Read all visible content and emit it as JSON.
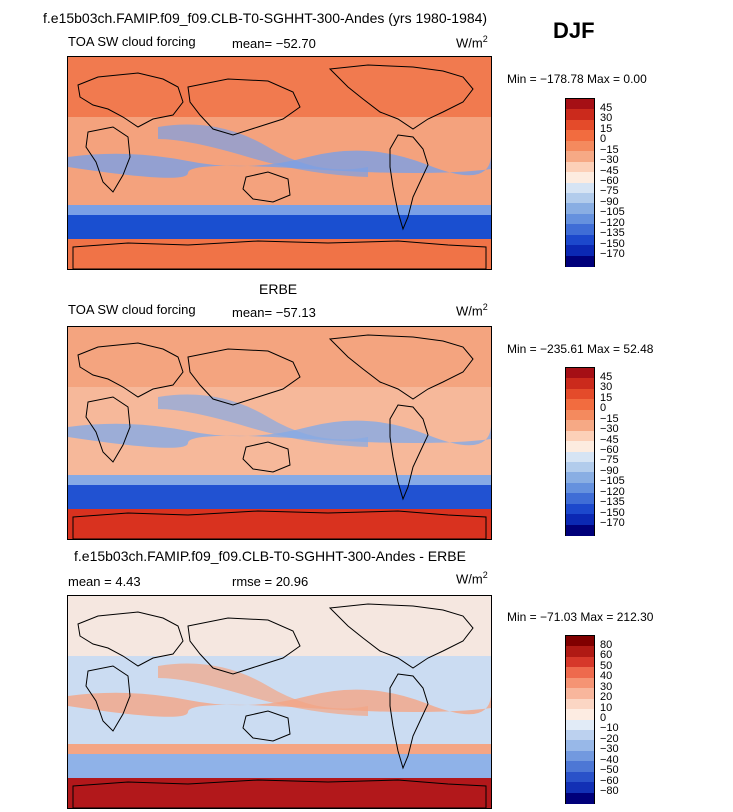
{
  "case_title": "f.e15b03ch.FAMIP.f09_f09.CLB-T0-SGHHT-300-Andes (yrs 1980-1984)",
  "season": "DJF",
  "panels": [
    {
      "title": "",
      "field": "TOA SW cloud forcing",
      "mean_text": "mean= −52.70",
      "units": "W/m",
      "units_exp": "2",
      "minmax": "Min = −178.78 Max =    0.00",
      "colorbar_labels": [
        "45",
        "30",
        "15",
        "0",
        "−15",
        "−30",
        "−45",
        "−60",
        "−75",
        "−90",
        "−105",
        "−120",
        "−135",
        "−150",
        "−170"
      ],
      "colorbar_colors": [
        "#a50f15",
        "#cb2a1c",
        "#e44b2a",
        "#f26c3f",
        "#f48a5e",
        "#f6a985",
        "#fcd0b8",
        "#fdece0",
        "#d6e4f4",
        "#b2ccec",
        "#89aee3",
        "#6591de",
        "#3f6dd6",
        "#1c48cc",
        "#0b28b3",
        "#00007a"
      ],
      "field_colors": {
        "land": "#f07347",
        "ocean": "#f4a27d",
        "band": "#1a4fd0",
        "band_edge": "#7aa0e6",
        "antarctica": "#f07347"
      }
    },
    {
      "title": "ERBE",
      "field": "TOA SW cloud forcing",
      "mean_text": "mean= −57.13",
      "units": "W/m",
      "units_exp": "2",
      "minmax": "Min = −235.61 Max =  52.48",
      "colorbar_labels": [
        "45",
        "30",
        "15",
        "0",
        "−15",
        "−30",
        "−45",
        "−60",
        "−75",
        "−90",
        "−105",
        "−120",
        "−135",
        "−150",
        "−170"
      ],
      "colorbar_colors": [
        "#a50f15",
        "#cb2a1c",
        "#e44b2a",
        "#f26c3f",
        "#f48a5e",
        "#f6a985",
        "#fcd0b8",
        "#fdece0",
        "#d6e4f4",
        "#b2ccec",
        "#89aee3",
        "#6591de",
        "#3f6dd6",
        "#1c48cc",
        "#0b28b3",
        "#00007a"
      ],
      "field_colors": {
        "land": "#f3a07a",
        "ocean": "#f6b89a",
        "band": "#2152d2",
        "band_edge": "#86aae6",
        "antarctica": "#d9321f"
      }
    },
    {
      "title": "f.e15b03ch.FAMIP.f09_f09.CLB-T0-SGHHT-300-Andes - ERBE",
      "field": "",
      "mean_text": "mean =    4.43",
      "rmse_text": "rmse =  20.96",
      "units": "W/m",
      "units_exp": "2",
      "minmax": "Min = −71.03 Max = 212.30",
      "colorbar_labels": [
        "80",
        "60",
        "50",
        "40",
        "30",
        "20",
        "10",
        "0",
        "−10",
        "−20",
        "−30",
        "−40",
        "−50",
        "−60",
        "−80"
      ],
      "colorbar_colors": [
        "#800000",
        "#b01a14",
        "#d6382a",
        "#ee6a4d",
        "#f59474",
        "#f8b69c",
        "#fbd6c4",
        "#fdece2",
        "#e1ebf7",
        "#bcd1ef",
        "#98b8e8",
        "#7299df",
        "#4d77d5",
        "#2a52c9",
        "#1230b5",
        "#00007a"
      ],
      "field_colors": {
        "land": "#fde9dd",
        "ocean": "#cbdcf2",
        "band": "#8fb2e8",
        "band_edge": "#f4a584",
        "antarctica": "#b2181b"
      }
    }
  ]
}
